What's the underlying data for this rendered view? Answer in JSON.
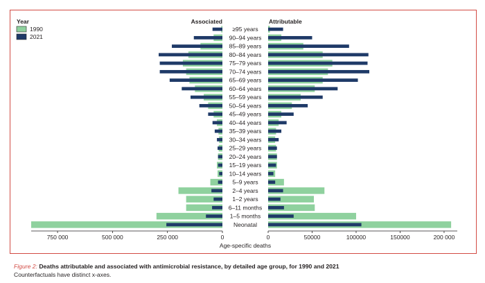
{
  "figure": {
    "label": "Figure 2:",
    "title": "Deaths attributable and associated with antimicrobial resistance, by detailed age group, for 1990 and 2021",
    "subtitle": "Counterfactuals have distinct x-axes."
  },
  "chart_data": {
    "type": "bar",
    "orientation": "horizontal",
    "layout": "back-to-back population pyramid",
    "legend": {
      "title": "Year",
      "placement": "top-left",
      "items": [
        {
          "name": "1990",
          "color": "#8fd19e"
        },
        {
          "name": "2021",
          "color": "#1f3a68"
        }
      ]
    },
    "xlabel": "Age-specific deaths",
    "grid": false,
    "categories": [
      "≥95 years",
      "90–94 years",
      "85–89 years",
      "80–84 years",
      "75–79 years",
      "70–74 years",
      "65–69 years",
      "60–64 years",
      "55–59 years",
      "50–54 years",
      "45–49 years",
      "40–44 years",
      "35–39 years",
      "30–34 years",
      "25–29 years",
      "20–24 years",
      "15–19 years",
      "10–14 years",
      "5–9 years",
      "2–4 years",
      "1–2 years",
      "6–11 months",
      "1–5 months",
      "Neonatal"
    ],
    "panels": [
      {
        "side": "left",
        "title": "Associated",
        "xlim": [
          0,
          870000
        ],
        "ticks": [
          {
            "value": 750000,
            "label": "750 000"
          },
          {
            "value": 500000,
            "label": "500 000"
          },
          {
            "value": 250000,
            "label": "250 000"
          },
          {
            "value": 0,
            "label": "0"
          }
        ],
        "series": [
          {
            "name": "1990",
            "values": [
              5000,
              40000,
              100000,
              155000,
              180000,
              165000,
              150000,
              125000,
              85000,
              65000,
              40000,
              25000,
              18000,
              15000,
              17000,
              20000,
              25000,
              22000,
              55000,
              200000,
              165000,
              165000,
              300000,
              870000
            ]
          },
          {
            "name": "2021",
            "values": [
              45000,
              130000,
              230000,
              290000,
              285000,
              285000,
              240000,
              185000,
              145000,
              105000,
              65000,
              45000,
              35000,
              25000,
              22000,
              20000,
              20000,
              15000,
              20000,
              50000,
              40000,
              47000,
              75000,
              255000
            ]
          }
        ]
      },
      {
        "side": "right",
        "title": "Attributable",
        "xlim": [
          0,
          215000
        ],
        "ticks": [
          {
            "value": 0,
            "label": "0"
          },
          {
            "value": 50000,
            "label": "50000"
          },
          {
            "value": 100000,
            "label": "100000"
          },
          {
            "value": 150000,
            "label": "150000"
          },
          {
            "value": 200000,
            "label": "200 000"
          }
        ],
        "series": [
          {
            "name": "1990",
            "values": [
              2000,
              15000,
              40000,
              62000,
              73000,
              68000,
              62000,
              53000,
              37000,
              27000,
              15000,
              12000,
              9000,
              8000,
              9000,
              10000,
              10000,
              8000,
              18000,
              64000,
              52000,
              53000,
              100000,
              208000
            ]
          },
          {
            "name": "2021",
            "values": [
              17000,
              50000,
              92000,
              114000,
              113000,
              115000,
              102000,
              79000,
              62000,
              45000,
              29000,
              21000,
              15000,
              12000,
              10000,
              10000,
              9000,
              6000,
              8000,
              17000,
              14000,
              18000,
              29000,
              106000
            ]
          }
        ]
      }
    ]
  }
}
